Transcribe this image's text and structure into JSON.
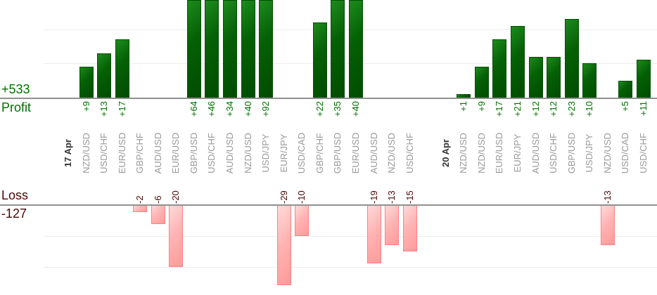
{
  "chart_data": {
    "type": "bar",
    "summary": {
      "profit_total": "+533",
      "profit_label": "Profit",
      "loss_label": "Loss",
      "loss_total": "-127"
    },
    "axes": {
      "profit_gridlines": [
        10,
        20
      ],
      "loss_gridlines": [
        10,
        20
      ],
      "grid": "horizontal-light",
      "profit_axis_visible_max": 29,
      "loss_axis_visible_max": 26,
      "bars_clipped_at_edges": true
    },
    "colors": {
      "profit_text": "#007000",
      "loss_text": "#4d0505",
      "profit_bar": "#056105",
      "loss_bar_fill": "#ffb4b4",
      "loss_bar_border": "#fd8181",
      "pair_label": "#999999",
      "date_label": "#333333",
      "axis_line": "#909090",
      "gridline": "#ececec"
    },
    "columns": [
      {
        "type": "date",
        "label": "17 Apr",
        "value": null
      },
      {
        "type": "pair",
        "label": "NZD/USD",
        "value": 9
      },
      {
        "type": "pair",
        "label": "USD/CHF",
        "value": 13
      },
      {
        "type": "pair",
        "label": "EUR/USD",
        "value": 17
      },
      {
        "type": "pair",
        "label": "GBP/CHF",
        "value": -2
      },
      {
        "type": "pair",
        "label": "AUD/USD",
        "value": -6
      },
      {
        "type": "pair",
        "label": "EUR/USD",
        "value": -20
      },
      {
        "type": "pair",
        "label": "GBP/USD",
        "value": 64
      },
      {
        "type": "pair",
        "label": "USD/CHF",
        "value": 46
      },
      {
        "type": "pair",
        "label": "AUD/USD",
        "value": 34
      },
      {
        "type": "pair",
        "label": "NZD/USD",
        "value": 40
      },
      {
        "type": "pair",
        "label": "USD/JPY",
        "value": 92
      },
      {
        "type": "pair",
        "label": "EUR/JPY",
        "value": -29
      },
      {
        "type": "pair",
        "label": "USD/CAD",
        "value": -10
      },
      {
        "type": "pair",
        "label": "GBP/CHF",
        "value": 22
      },
      {
        "type": "pair",
        "label": "GBP/USD",
        "value": 35
      },
      {
        "type": "pair",
        "label": "EUR/USD",
        "value": 40
      },
      {
        "type": "pair",
        "label": "AUD/USD",
        "value": -19
      },
      {
        "type": "pair",
        "label": "NZD/USD",
        "value": -13
      },
      {
        "type": "pair",
        "label": "USD/CHF",
        "value": -15
      },
      {
        "type": "spacer",
        "label": "",
        "value": null
      },
      {
        "type": "date",
        "label": "20 Apr",
        "value": null
      },
      {
        "type": "pair",
        "label": "NZD/USD",
        "value": 1
      },
      {
        "type": "pair",
        "label": "NZD/USD",
        "value": 9
      },
      {
        "type": "pair",
        "label": "EUR/USD",
        "value": 17
      },
      {
        "type": "pair",
        "label": "EUR/JPY",
        "value": 21
      },
      {
        "type": "pair",
        "label": "AUD/USD",
        "value": 12
      },
      {
        "type": "pair",
        "label": "USD/CHF",
        "value": 12
      },
      {
        "type": "pair",
        "label": "GBP/USD",
        "value": 23
      },
      {
        "type": "pair",
        "label": "USD/JPY",
        "value": 10
      },
      {
        "type": "pair",
        "label": "NZD/USD",
        "value": -13
      },
      {
        "type": "pair",
        "label": "USD/CAD",
        "value": 5
      },
      {
        "type": "pair",
        "label": "USD/CHF",
        "value": 11
      }
    ]
  }
}
